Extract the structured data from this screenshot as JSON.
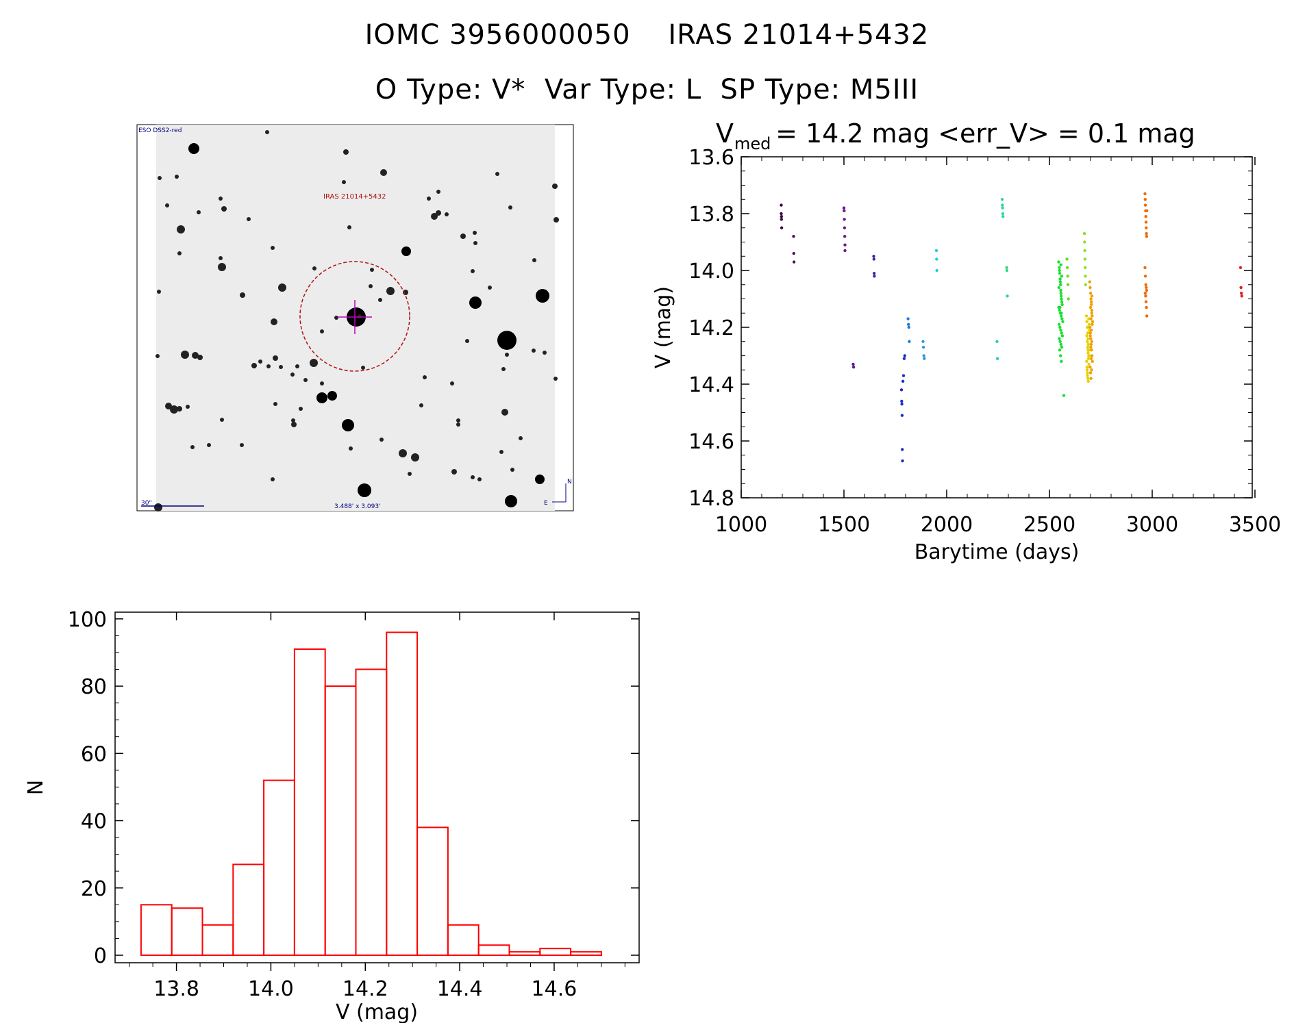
{
  "header": {
    "line1": "IOMC 3956000050    IRAS 21014+5432",
    "line2": "O Type: V*  Var Type: L  SP Type: M5III"
  },
  "finder": {
    "survey_label": "ESO DSS2-red",
    "object_label": "IRAS 21014+5432",
    "scale_label": "30\"",
    "fov_label": "3.488' x 3.093'",
    "north_label": "N",
    "east_label": "E"
  },
  "chart_data": [
    {
      "type": "scatter",
      "title_main": "V",
      "title_sub": "med",
      "title_rest": " = 14.2 mag <err_V> = 0.1 mag",
      "xlabel": "Barytime (days)",
      "ylabel": "V (mag)",
      "xlim": [
        1000,
        3500
      ],
      "ylim": [
        13.6,
        14.8
      ],
      "y_inverted": true,
      "xticks": [
        1000,
        1500,
        2000,
        2500,
        3000,
        3500
      ],
      "yticks": [
        "13.6",
        "13.8",
        "14.0",
        "14.2",
        "14.4",
        "14.6",
        "14.8"
      ],
      "series": [
        {
          "name": "group1",
          "color": "#3a0a3a",
          "x": [
            1195,
            1195,
            1196,
            1196,
            1197
          ],
          "y": [
            13.77,
            13.8,
            13.81,
            13.82,
            13.85
          ]
        },
        {
          "name": "group2",
          "color": "#5a1060",
          "x": [
            1255,
            1256,
            1257
          ],
          "y": [
            13.88,
            13.94,
            13.97
          ]
        },
        {
          "name": "group3",
          "color": "#6a1a8a",
          "x": [
            1500,
            1501,
            1502,
            1503,
            1504,
            1505,
            1505
          ],
          "y": [
            13.78,
            13.79,
            13.82,
            13.85,
            13.88,
            13.91,
            13.93
          ]
        },
        {
          "name": "group4",
          "color": "#5a1a9a",
          "x": [
            1545,
            1547
          ],
          "y": [
            14.33,
            14.34
          ]
        },
        {
          "name": "group5",
          "color": "#3a2aaa",
          "x": [
            1645,
            1646,
            1647,
            1648
          ],
          "y": [
            13.95,
            13.96,
            14.01,
            14.02
          ]
        },
        {
          "name": "group6",
          "color": "#1a30d0",
          "x": [
            1780,
            1781,
            1782,
            1783,
            1784,
            1785,
            1787,
            1790,
            1793,
            1796
          ],
          "y": [
            14.42,
            14.46,
            14.47,
            14.51,
            14.63,
            14.67,
            14.39,
            14.37,
            14.31,
            14.3
          ]
        },
        {
          "name": "group7",
          "color": "#1f78e0",
          "x": [
            1812,
            1814,
            1816,
            1818
          ],
          "y": [
            14.17,
            14.19,
            14.2,
            14.25
          ]
        },
        {
          "name": "group8",
          "color": "#2a9ae0",
          "x": [
            1885,
            1887,
            1889,
            1891
          ],
          "y": [
            14.25,
            14.27,
            14.3,
            14.31
          ]
        },
        {
          "name": "group9",
          "color": "#1fd0d0",
          "x": [
            1950,
            1951,
            1952
          ],
          "y": [
            13.93,
            13.96,
            14.0
          ]
        },
        {
          "name": "group10",
          "color": "#28c8c0",
          "x": [
            2245,
            2247
          ],
          "y": [
            14.25,
            14.31
          ]
        },
        {
          "name": "group11",
          "color": "#2ad8a0",
          "x": [
            2270,
            2271,
            2272,
            2273,
            2274
          ],
          "y": [
            13.75,
            13.77,
            13.78,
            13.8,
            13.81
          ]
        },
        {
          "name": "group12",
          "color": "#30d880",
          "x": [
            2292,
            2293,
            2295
          ],
          "y": [
            13.99,
            14.0,
            14.09
          ]
        },
        {
          "name": "group13",
          "color": "#19e030",
          "x": [
            2545,
            2548,
            2550,
            2552,
            2554,
            2555,
            2556,
            2557,
            2558,
            2560,
            2562,
            2545,
            2549,
            2553,
            2557,
            2561,
            2565,
            2547,
            2551,
            2555,
            2559,
            2563,
            2548,
            2552,
            2556,
            2560,
            2550,
            2554,
            2558,
            2546,
            2553,
            2560,
            2549,
            2556,
            2551,
            2558,
            2570
          ],
          "y": [
            13.97,
            13.99,
            14.01,
            14.03,
            14.05,
            14.07,
            14.08,
            14.09,
            14.1,
            14.11,
            14.12,
            14.13,
            14.14,
            14.15,
            14.16,
            14.17,
            14.18,
            14.19,
            14.2,
            14.21,
            14.22,
            14.23,
            14.24,
            14.25,
            14.26,
            14.27,
            14.28,
            14.3,
            14.32,
            14.06,
            14.04,
            14.02,
            14.0,
            13.98,
            14.13,
            14.15,
            14.44
          ]
        },
        {
          "name": "group14",
          "color": "#60e020",
          "x": [
            2585,
            2587,
            2589,
            2590,
            2592
          ],
          "y": [
            13.96,
            13.99,
            14.02,
            14.05,
            14.1
          ]
        },
        {
          "name": "group15",
          "color": "#8ee020",
          "x": [
            2670,
            2671,
            2672,
            2673,
            2674,
            2675,
            2676
          ],
          "y": [
            13.87,
            13.9,
            13.93,
            13.96,
            13.99,
            14.02,
            14.05
          ]
        },
        {
          "name": "group16",
          "color": "#e6d000",
          "x": [
            2680,
            2682,
            2684,
            2686,
            2688,
            2690,
            2692,
            2694,
            2681,
            2683,
            2685,
            2687,
            2689,
            2691,
            2693,
            2695,
            2682,
            2684,
            2686,
            2688,
            2690,
            2692,
            2683,
            2685,
            2687,
            2689,
            2691,
            2684,
            2686,
            2688
          ],
          "y": [
            14.16,
            14.18,
            14.2,
            14.22,
            14.24,
            14.26,
            14.28,
            14.3,
            14.32,
            14.34,
            14.36,
            14.38,
            14.39,
            14.17,
            14.19,
            14.21,
            14.23,
            14.25,
            14.27,
            14.29,
            14.31,
            14.33,
            14.35,
            14.37,
            14.22,
            14.26,
            14.3,
            14.34,
            14.2,
            14.28
          ]
        },
        {
          "name": "group17",
          "color": "#f0a000",
          "x": [
            2696,
            2698,
            2700,
            2702,
            2704,
            2706,
            2708,
            2710,
            2697,
            2699,
            2701,
            2703,
            2705,
            2707,
            2709,
            2698,
            2700,
            2702,
            2704,
            2706,
            2708,
            2699,
            2701,
            2703,
            2705,
            2707,
            2700,
            2702,
            2704,
            2706
          ],
          "y": [
            14.04,
            14.06,
            14.08,
            14.1,
            14.12,
            14.14,
            14.16,
            14.18,
            14.2,
            14.22,
            14.24,
            14.26,
            14.28,
            14.3,
            14.32,
            14.34,
            14.36,
            14.38,
            14.11,
            14.15,
            14.19,
            14.23,
            14.27,
            14.31,
            14.35,
            14.09,
            14.13,
            14.17,
            14.21,
            14.25
          ]
        },
        {
          "name": "group18",
          "color": "#f06a00",
          "x": [
            2965,
            2966,
            2967,
            2968,
            2969,
            2970,
            2971,
            2972,
            2973,
            2974,
            2965,
            2967,
            2969,
            2971,
            2973,
            2966,
            2968,
            2970,
            2972,
            2974
          ],
          "y": [
            13.73,
            13.75,
            13.77,
            13.79,
            13.81,
            13.83,
            13.85,
            13.87,
            13.88,
            13.79,
            13.99,
            14.02,
            14.05,
            14.06,
            14.07,
            14.08,
            14.09,
            14.11,
            14.13,
            14.16
          ]
        },
        {
          "name": "group19",
          "color": "#e02020",
          "x": [
            3430,
            3432,
            3434,
            3436
          ],
          "y": [
            13.99,
            14.06,
            14.08,
            14.09
          ]
        }
      ]
    },
    {
      "type": "bar",
      "subtype": "histogram",
      "xlabel": "V (mag)",
      "ylabel": "N",
      "xlim": [
        13.67,
        14.78
      ],
      "ylim": [
        0,
        102
      ],
      "xticks": [
        "13.8",
        "14.0",
        "14.2",
        "14.4",
        "14.6"
      ],
      "yticks": [
        "0",
        "20",
        "40",
        "60",
        "80",
        "100"
      ],
      "bin_width": 0.065,
      "bin_start": 13.725,
      "values": [
        15,
        14,
        9,
        27,
        52,
        91,
        80,
        85,
        96,
        38,
        9,
        3,
        1,
        2,
        1
      ],
      "color": "#ff0000"
    }
  ]
}
